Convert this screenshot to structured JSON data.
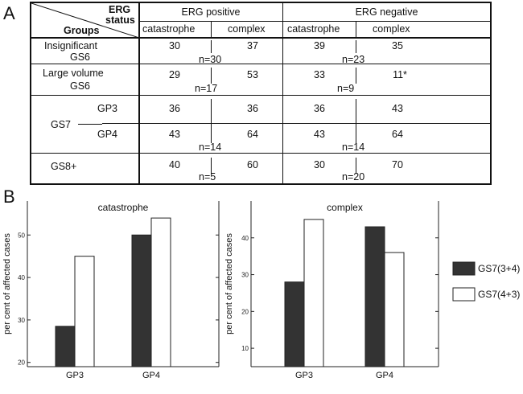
{
  "panels": {
    "a": "A",
    "b": "B"
  },
  "table": {
    "corner_top_line1": "ERG",
    "corner_top_line2": "status",
    "corner_bottom": "Groups",
    "erg_positive": "ERG positive",
    "erg_negative": "ERG negative",
    "subheaders": [
      "catastrophe",
      "complex",
      "catastrophe",
      "complex"
    ],
    "rows": [
      {
        "label_line1": "Insignificant",
        "label_line2": "GS6",
        "values": [
          "30",
          "37",
          "39",
          "35"
        ],
        "n_pos": "n=30",
        "n_neg": "n=23"
      },
      {
        "label_line1": "Large volume",
        "label_line2": "GS6",
        "values": [
          "29",
          "53",
          "33",
          "11*"
        ],
        "n_pos": "n=17",
        "n_neg": "n=9"
      },
      {
        "label": "GS7",
        "sub": [
          {
            "label": "GP3",
            "values": [
              "36",
              "36",
              "36",
              "43"
            ]
          },
          {
            "label": "GP4",
            "values": [
              "43",
              "64",
              "43",
              "64"
            ]
          }
        ],
        "n_pos": "n=14",
        "n_neg": "n=14"
      },
      {
        "label": "GS8+",
        "values": [
          "40",
          "60",
          "30",
          "70"
        ],
        "n_pos": "n=5",
        "n_neg": "n=20"
      }
    ]
  },
  "chart_data": [
    {
      "type": "bar",
      "title": "catastrophe",
      "ylabel": "per cent of affected  cases",
      "categories": [
        "GP3",
        "GP4"
      ],
      "series": [
        {
          "name": "GS7(3+4)",
          "values": [
            28.5,
            50
          ]
        },
        {
          "name": "GS7(4+3)",
          "values": [
            45,
            54
          ]
        }
      ],
      "ylim": [
        19,
        58
      ],
      "yticks": [
        20,
        30,
        40,
        50
      ]
    },
    {
      "type": "bar",
      "title": "complex",
      "ylabel": "per cent of affected  cases",
      "categories": [
        "GP3",
        "GP4"
      ],
      "series": [
        {
          "name": "GS7(3+4)",
          "values": [
            28,
            43
          ]
        },
        {
          "name": "GS7(4+3)",
          "values": [
            45,
            36
          ]
        }
      ],
      "ylim": [
        5,
        50
      ],
      "yticks": [
        10,
        20,
        30,
        40
      ]
    }
  ],
  "legend": [
    {
      "label": "GS7(3+4)",
      "color": "#333333"
    },
    {
      "label": "GS7(4+3)",
      "color": "#ffffff"
    }
  ]
}
